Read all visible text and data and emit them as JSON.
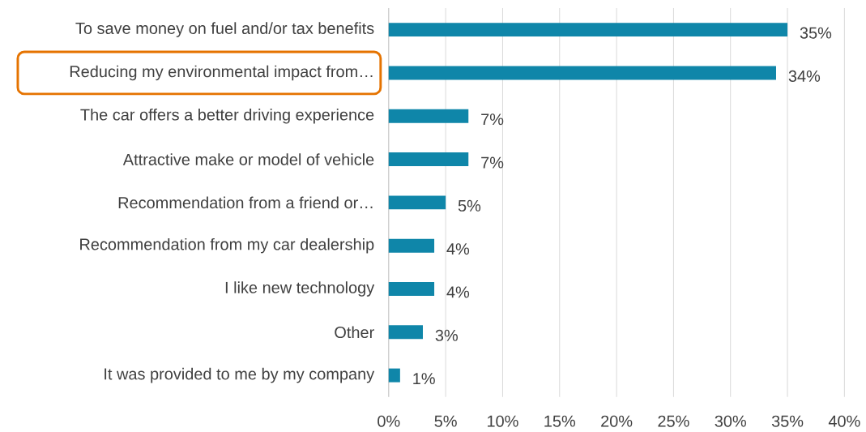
{
  "chart_data": {
    "type": "bar",
    "orientation": "horizontal",
    "categories": [
      "To save money on fuel and/or tax benefits",
      "Reducing my environmental impact from…",
      "The car offers a better driving experience",
      "Attractive make or model of vehicle",
      "Recommendation from a friend or…",
      "Recommendation from my car dealership",
      "I like new technology",
      "Other",
      "It was provided to me by my company"
    ],
    "values": [
      35,
      34,
      7,
      7,
      5,
      4,
      4,
      3,
      1
    ],
    "value_labels": [
      "35%",
      "34%",
      "7%",
      "7%",
      "5%",
      "4%",
      "4%",
      "3%",
      "1%"
    ],
    "color": "#0f86a9",
    "xlim": [
      0,
      40
    ],
    "xticks": [
      {
        "value": 0,
        "label": "0%"
      },
      {
        "value": 5,
        "label": "5%"
      },
      {
        "value": 10,
        "label": "10%"
      },
      {
        "value": 15,
        "label": "15%"
      },
      {
        "value": 20,
        "label": "20%"
      },
      {
        "value": 25,
        "label": "25%"
      },
      {
        "value": 30,
        "label": "30%"
      },
      {
        "value": 35,
        "label": "35%"
      },
      {
        "value": 40,
        "label": "40%"
      }
    ],
    "grid": "x"
  }
}
